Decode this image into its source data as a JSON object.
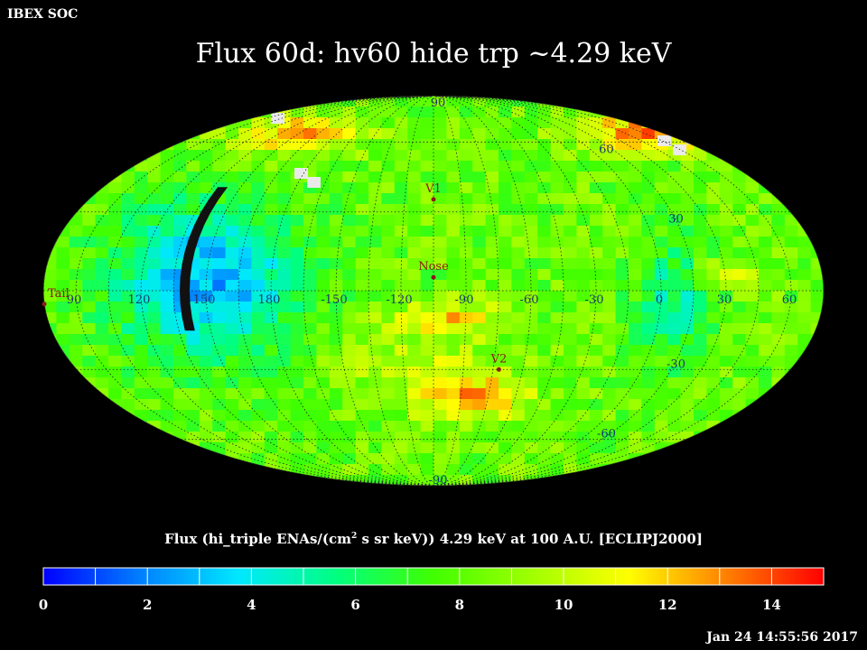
{
  "header": {
    "soc_label": "IBEX SOC",
    "title": "Flux   60d: hv60 hide trp ~4.29 keV",
    "timestamp": "Jan 24 14:55:56 2017"
  },
  "colorbar": {
    "title_prefix": "Flux (hi_triple ENAs/(cm",
    "title_sup": "2",
    "title_suffix": " s sr keV))  4.29 keV at 100 A.U. [ECLIPJ2000]",
    "ticks": [
      "0",
      "2",
      "4",
      "6",
      "8",
      "10",
      "12",
      "14"
    ],
    "min": 0,
    "max": 15,
    "colors": [
      "#0000ff",
      "#0080ff",
      "#00e8ff",
      "#00ff80",
      "#40ff00",
      "#a0ff00",
      "#ffff00",
      "#ff8000",
      "#ff0000"
    ]
  },
  "chart_data": {
    "type": "heatmap",
    "projection": "mollweide",
    "frame": "ECLIPJ2000",
    "energy": "4.29 keV",
    "value_range": [
      0,
      15
    ],
    "longitude_labels": [
      "60",
      "30",
      "0",
      "-30",
      "-60",
      "-90",
      "-120",
      "-150",
      "180",
      "150",
      "120",
      "90"
    ],
    "latitude_labels": [
      "90",
      "60",
      "30",
      "-30",
      "-60",
      "-90"
    ],
    "markers": [
      {
        "name": "V1",
        "lon": -105,
        "lat": 35
      },
      {
        "name": "Nose",
        "lon": -105,
        "lat": 5
      },
      {
        "name": "V2",
        "lon": -72,
        "lat": -30
      },
      {
        "name": "Tail",
        "lon": 75,
        "lat": -5
      }
    ],
    "hidden_region": {
      "label": "",
      "lon_center": 140,
      "lat_range": [
        -15,
        40
      ]
    }
  }
}
